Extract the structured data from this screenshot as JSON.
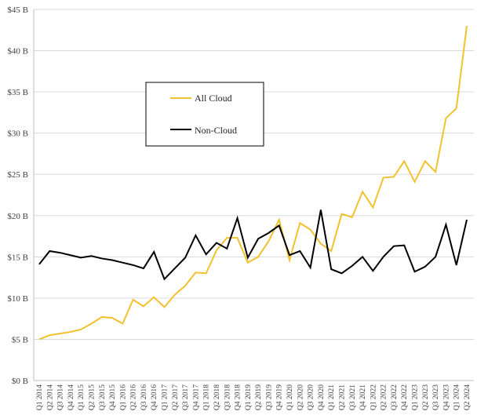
{
  "chart_data": {
    "type": "line",
    "title": "",
    "xlabel": "",
    "ylabel": "",
    "ylim": [
      0,
      45
    ],
    "y_tick_values": [
      0,
      5,
      10,
      15,
      20,
      25,
      30,
      35,
      40,
      45
    ],
    "y_tick_labels": [
      "$0 B",
      "$5 B",
      "$10 B",
      "$15 B",
      "$20 B",
      "$25 B",
      "$30 B",
      "$35 B",
      "$40 B",
      "$45 B"
    ],
    "grid": "horizontal",
    "legend_position": "upper-left",
    "categories": [
      "Q1 2014",
      "Q2 2014",
      "Q3 2014",
      "Q4 2014",
      "Q1 2015",
      "Q2 2015",
      "Q3 2015",
      "Q4 2015",
      "Q1 2016",
      "Q2 2016",
      "Q3 2016",
      "Q4 2016",
      "Q1 2017",
      "Q2 2017",
      "Q3 2017",
      "Q4 2017",
      "Q1 2018",
      "Q2 2018",
      "Q3 2018",
      "Q4 2018",
      "Q1 2019",
      "Q2 2019",
      "Q3 2019",
      "Q4 2019",
      "Q1 2020",
      "Q2 2020",
      "Q3 2020",
      "Q4 2020",
      "Q1 2021",
      "Q2 2021",
      "Q3 2021",
      "Q4 2021",
      "Q1 2022",
      "Q2 2022",
      "Q3 2022",
      "Q4 2022",
      "Q1 2023",
      "Q2 2023",
      "Q3 2023",
      "Q4 2023",
      "Q1 2024",
      "Q2 2024"
    ],
    "series": [
      {
        "name": "All Cloud",
        "color": "#f2c12e",
        "values": [
          5.0,
          5.5,
          5.7,
          5.9,
          6.2,
          6.9,
          7.7,
          7.6,
          6.9,
          9.8,
          9.0,
          10.1,
          8.9,
          10.4,
          11.5,
          13.1,
          13.0,
          15.8,
          17.3,
          17.3,
          14.3,
          15.0,
          16.9,
          19.5,
          14.6,
          19.1,
          18.3,
          16.6,
          15.7,
          20.2,
          19.8,
          22.9,
          21.0,
          24.6,
          24.7,
          26.6,
          24.1,
          26.6,
          25.3,
          31.8,
          33.0,
          43.0
        ]
      },
      {
        "name": "Non-Cloud",
        "color": "#000000",
        "values": [
          14.1,
          15.7,
          15.5,
          15.2,
          14.9,
          15.1,
          14.8,
          14.6,
          14.3,
          14.0,
          13.6,
          15.6,
          12.3,
          13.6,
          14.9,
          17.6,
          15.3,
          16.7,
          16.0,
          19.7,
          14.9,
          17.2,
          17.9,
          18.8,
          15.2,
          15.7,
          13.7,
          20.7,
          13.5,
          13.0,
          13.9,
          15.0,
          13.3,
          15.0,
          16.3,
          16.4,
          13.2,
          13.8,
          15.0,
          18.9,
          14.0,
          19.5
        ]
      }
    ]
  }
}
